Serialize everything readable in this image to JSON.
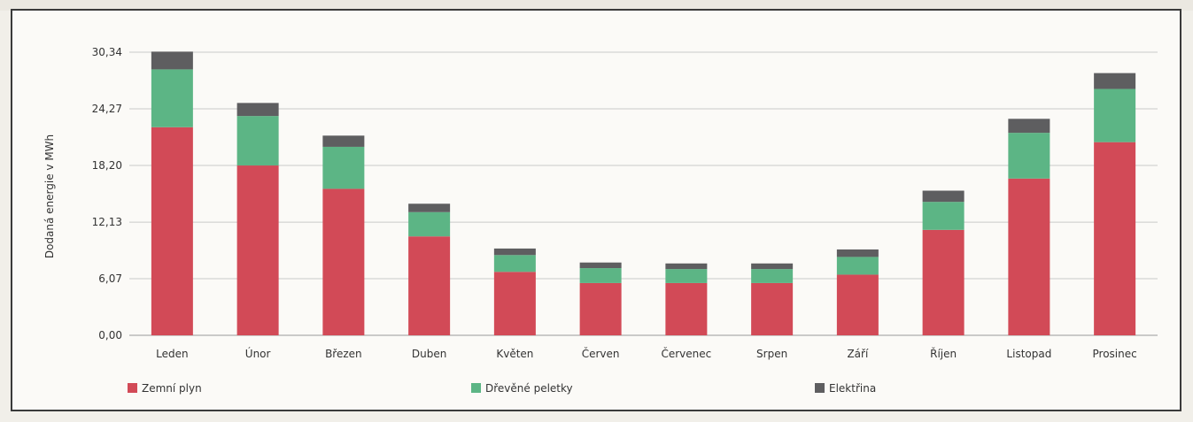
{
  "chart_data": {
    "type": "bar",
    "stacked": true,
    "ylabel": "Dodaná energie v MWh",
    "ylim": [
      0,
      30.34
    ],
    "yticks": [
      "0,00",
      "6,07",
      "12,13",
      "18,20",
      "24,27",
      "30,34"
    ],
    "ytick_values": [
      0,
      6.07,
      12.13,
      18.2,
      24.27,
      30.34
    ],
    "categories": [
      "Leden",
      "Únor",
      "Březen",
      "Duben",
      "Květen",
      "Červen",
      "Červenec",
      "Srpen",
      "Září",
      "Říjen",
      "Listopad",
      "Prosinec"
    ],
    "series": [
      {
        "name": "Zemní plyn",
        "color": "#d24a57",
        "values": [
          22.3,
          18.2,
          15.7,
          10.6,
          6.8,
          5.6,
          5.6,
          5.6,
          6.5,
          11.3,
          16.8,
          20.7
        ]
      },
      {
        "name": "Dřevěné peletky",
        "color": "#5cb585",
        "values": [
          6.2,
          5.3,
          4.5,
          2.6,
          1.8,
          1.6,
          1.5,
          1.5,
          1.9,
          3.0,
          4.9,
          5.7
        ]
      },
      {
        "name": "Elektřina",
        "color": "#5e5e60",
        "values": [
          1.9,
          1.4,
          1.2,
          0.9,
          0.7,
          0.6,
          0.6,
          0.6,
          0.8,
          1.2,
          1.5,
          1.7
        ]
      }
    ],
    "grid": "horizontal",
    "legend_position": "bottom"
  }
}
